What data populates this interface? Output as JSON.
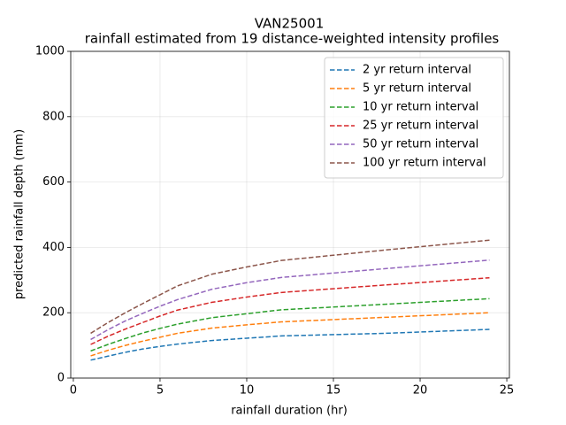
{
  "chart_data": {
    "type": "line",
    "title": "VAN25001",
    "subtitle": "rainfall estimated from 19 distance-weighted intensity profiles",
    "x_label": "rainfall duration (hr)",
    "y_label": "predicted rainfall depth (mm)",
    "x": [
      1,
      2,
      3,
      4,
      5,
      6,
      8,
      10,
      12,
      18,
      24
    ],
    "series": [
      {
        "name": "2 yr return interval",
        "color": "#1f77b4",
        "values": [
          55,
          67,
          79,
          89,
          97,
          104,
          115,
          122,
          129,
          137,
          149
        ]
      },
      {
        "name": "5 yr return interval",
        "color": "#ff7f0e",
        "values": [
          68,
          85,
          100,
          113,
          125,
          137,
          153,
          163,
          172,
          186,
          200
        ]
      },
      {
        "name": "10 yr return interval",
        "color": "#2ca02c",
        "values": [
          83,
          103,
          121,
          138,
          152,
          165,
          185,
          197,
          209,
          226,
          243
        ]
      },
      {
        "name": "25 yr return interval",
        "color": "#d62728",
        "values": [
          103,
          128,
          150,
          170,
          190,
          208,
          232,
          248,
          262,
          285,
          307
        ]
      },
      {
        "name": "50 yr return interval",
        "color": "#9467bd",
        "values": [
          118,
          148,
          175,
          198,
          220,
          240,
          272,
          292,
          308,
          335,
          361
        ]
      },
      {
        "name": "100 yr return interval",
        "color": "#8c564b",
        "values": [
          137,
          170,
          200,
          228,
          255,
          282,
          318,
          340,
          360,
          392,
          422
        ]
      }
    ],
    "xlim": [
      -0.15,
      25.15
    ],
    "xticks": [
      0,
      5,
      10,
      15,
      20,
      25
    ],
    "ylim": [
      0,
      1000
    ],
    "yticks": [
      0,
      200,
      400,
      600,
      800,
      1000
    ],
    "grid": true,
    "legend": "upper right",
    "line_style": "dashed"
  }
}
